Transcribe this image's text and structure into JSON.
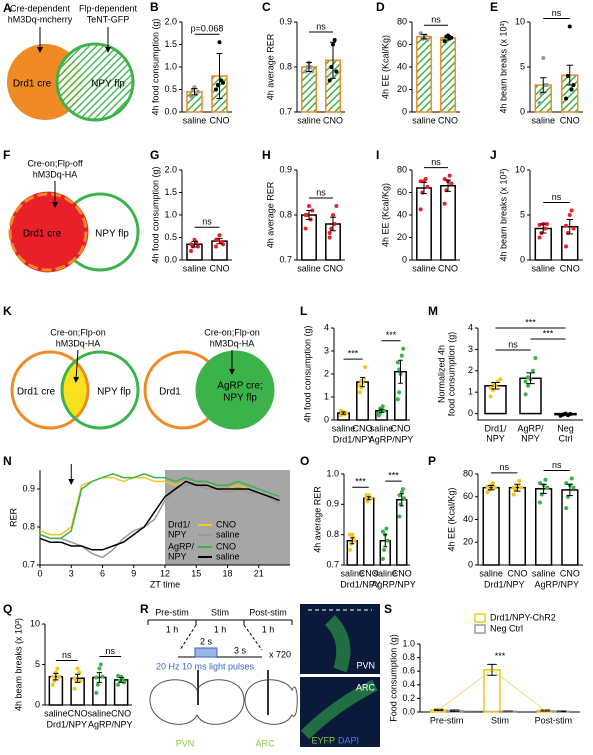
{
  "diagrams": {
    "A": {
      "panel": "A",
      "labels": [
        "Cre-dependent",
        "hM3Dq-mcherry",
        "Flp-dependent",
        "TeNT-GFP",
        "Drd1 cre",
        "NPY flp"
      ]
    },
    "F": {
      "panel": "F",
      "labels": [
        "Cre-on;Flp-off",
        "hM3Dq-HA",
        "Drd1 cre",
        "NPY flp"
      ]
    },
    "K": {
      "panel": "K",
      "labels": [
        "Cre-on;Flp-on",
        "hM3Dq-HA",
        "Drd1 cre",
        "NPY flp",
        "Cre-on;Flp-on",
        "hM3Dq-HA",
        "Drd1",
        "AgRP cre;",
        "NPY flp"
      ]
    },
    "R": {
      "panel": "R",
      "labels": [
        "Pre-stim",
        "Stim",
        "Post-stim",
        "1 h",
        "1 h",
        "1 h",
        "2 s",
        "3 s",
        "x 720",
        "20 Hz 10 ms light pulses",
        "PVN",
        "ARC",
        "PVN",
        "ARC",
        "EYFP",
        "DAPI"
      ]
    }
  },
  "chart_data": [
    {
      "type": "bar",
      "panel": "B",
      "ylabel": "4h food consumption (g)",
      "categories": [
        "saline",
        "CNO"
      ],
      "values": [
        0.45,
        0.8
      ],
      "errors": [
        0.07,
        0.5
      ],
      "points": [
        [
          0.35,
          0.5,
          0.55,
          0.4,
          0.45
        ],
        [
          0.5,
          0.6,
          1.55,
          0.7,
          0.65
        ]
      ],
      "ylim": [
        0,
        2
      ],
      "yticks": [
        {
          "value": 0,
          "label": "0.0"
        },
        0.5,
        {
          "value": 1,
          "label": "1.0"
        },
        1.5,
        {
          "value": 2,
          "label": "2.0"
        }
      ],
      "bar_fill": "hatch",
      "bar_stroke": "#f08a24",
      "point_colors": [
        "#999999",
        "#000000"
      ],
      "comparisons": [
        {
          "label": "p=0.068",
          "pair": [
            0,
            1
          ]
        }
      ]
    },
    {
      "type": "bar",
      "panel": "C",
      "ylabel": "4h average RER",
      "categories": [
        "saline",
        "CNO"
      ],
      "values": [
        0.8,
        0.815
      ],
      "errors": [
        0.01,
        0.04
      ],
      "points": [
        [
          0.79,
          0.8,
          0.81,
          0.8,
          0.79
        ],
        [
          0.77,
          0.8,
          0.85,
          0.86,
          0.79
        ]
      ],
      "ylim": [
        0.7,
        0.9
      ],
      "yticks": [
        0.7,
        0.8,
        0.9
      ],
      "bar_fill": "hatch",
      "bar_stroke": "#f08a24",
      "point_colors": [
        "#999999",
        "#000000"
      ],
      "comparisons": [
        {
          "label": "ns",
          "pair": [
            0,
            1
          ]
        }
      ]
    },
    {
      "type": "bar",
      "panel": "D",
      "ylabel": "4h EE (Kcal/Kg)",
      "categories": [
        "saline",
        "CNO"
      ],
      "values": [
        67,
        66
      ],
      "errors": [
        2,
        2
      ],
      "points": [
        [
          70,
          65,
          66,
          68,
          64
        ],
        [
          63,
          67,
          68,
          66,
          66
        ]
      ],
      "ylim": [
        0,
        80
      ],
      "yticks": [
        0,
        20,
        40,
        60,
        80
      ],
      "bar_fill": "hatch",
      "bar_stroke": "#f08a24",
      "point_colors": [
        "#999999",
        "#000000"
      ],
      "comparisons": [
        {
          "label": "ns",
          "pair": [
            0,
            1
          ]
        }
      ]
    },
    {
      "type": "bar",
      "panel": "E",
      "ylabel": "4h beam breaks (x 10³)",
      "categories": [
        "saline",
        "CNO"
      ],
      "values": [
        3,
        4.1
      ],
      "errors": [
        0.8,
        1.1
      ],
      "points": [
        [
          1,
          2,
          6,
          3,
          3
        ],
        [
          1.5,
          4,
          9.5,
          2.5,
          3
        ]
      ],
      "ylim": [
        0,
        10
      ],
      "yticks": [
        0,
        5,
        10
      ],
      "bar_fill": "hatch",
      "bar_stroke": "#f08a24",
      "point_colors": [
        "#999999",
        "#000000"
      ],
      "comparisons": [
        {
          "label": "ns",
          "pair": [
            0,
            1
          ]
        }
      ]
    },
    {
      "type": "bar",
      "panel": "G",
      "ylabel": "4h food consumption (g)",
      "categories": [
        "saline",
        "CNO"
      ],
      "values": [
        0.35,
        0.42
      ],
      "errors": [
        0.06,
        0.06
      ],
      "points": [
        [
          0.2,
          0.3,
          0.45,
          0.4,
          0.3,
          0.35
        ],
        [
          0.3,
          0.45,
          0.55,
          0.4,
          0.35,
          0.45
        ]
      ],
      "ylim": [
        0,
        2
      ],
      "yticks": [
        {
          "value": 0,
          "label": "0.0"
        },
        0.5,
        {
          "value": 1,
          "label": "1.0"
        },
        1.5,
        {
          "value": 2,
          "label": "2.0"
        }
      ],
      "bar_fill": "#ffffff",
      "bar_stroke": "#000000",
      "point_colors": [
        "#e8202a",
        "#e8202a"
      ],
      "comparisons": [
        {
          "label": "ns",
          "pair": [
            0,
            1
          ]
        }
      ]
    },
    {
      "type": "bar",
      "panel": "H",
      "ylabel": "4h average RER",
      "categories": [
        "saline",
        "CNO"
      ],
      "values": [
        0.8,
        0.78
      ],
      "errors": [
        0.01,
        0.015
      ],
      "points": [
        [
          0.77,
          0.8,
          0.82,
          0.79,
          0.81,
          0.8
        ],
        [
          0.75,
          0.77,
          0.8,
          0.78,
          0.82,
          0.76
        ]
      ],
      "ylim": [
        0.7,
        0.9
      ],
      "yticks": [
        0.7,
        0.8,
        0.9
      ],
      "bar_fill": "#ffffff",
      "bar_stroke": "#000000",
      "point_colors": [
        "#e8202a",
        "#e8202a"
      ],
      "comparisons": [
        {
          "label": "ns",
          "pair": [
            0,
            1
          ]
        }
      ]
    },
    {
      "type": "bar",
      "panel": "I",
      "ylabel": "4h EE (Kcal/Kg)",
      "categories": [
        "saline",
        "CNO"
      ],
      "values": [
        64,
        66
      ],
      "errors": [
        5,
        5
      ],
      "points": [
        [
          45,
          60,
          70,
          72,
          65,
          70
        ],
        [
          50,
          62,
          70,
          75,
          68,
          72
        ]
      ],
      "ylim": [
        0,
        80
      ],
      "yticks": [
        0,
        20,
        40,
        60,
        80
      ],
      "bar_fill": "#ffffff",
      "bar_stroke": "#000000",
      "point_colors": [
        "#e8202a",
        "#e8202a"
      ],
      "comparisons": [
        {
          "label": "ns",
          "pair": [
            0,
            1
          ]
        }
      ]
    },
    {
      "type": "bar",
      "panel": "J",
      "ylabel": "4h beam breaks (x 10³)",
      "categories": [
        "saline",
        "CNO"
      ],
      "values": [
        3.5,
        3.7
      ],
      "errors": [
        0.5,
        0.8
      ],
      "points": [
        [
          2.5,
          3,
          4,
          3.5,
          4,
          3.9
        ],
        [
          1.5,
          3,
          5,
          5.5,
          3.5,
          3.8
        ]
      ],
      "ylim": [
        0,
        10
      ],
      "yticks": [
        0,
        5,
        10
      ],
      "bar_fill": "#ffffff",
      "bar_stroke": "#000000",
      "point_colors": [
        "#e8202a",
        "#e8202a"
      ],
      "comparisons": [
        {
          "label": "ns",
          "pair": [
            0,
            1
          ]
        }
      ]
    },
    {
      "type": "bar",
      "panel": "L",
      "ylabel": "4h food consumption (g)",
      "categories": [
        "saline",
        "CNO",
        "saline",
        "CNO"
      ],
      "groups": [
        "Drd1/NPY",
        "AgRP/NPY"
      ],
      "values": [
        0.3,
        1.65,
        0.4,
        2.1
      ],
      "errors": [
        0.05,
        0.2,
        0.07,
        0.5
      ],
      "points": [
        [
          0.2,
          0.3,
          0.35,
          0.25,
          0.3,
          0.4,
          0.3
        ],
        [
          1.2,
          1.4,
          1.6,
          1.8,
          2.3,
          1.5,
          1.7
        ],
        [
          0.2,
          0.3,
          0.5,
          0.6,
          0.4,
          0.3,
          0.5
        ],
        [
          0.9,
          1.2,
          2.0,
          2.8,
          3.1,
          2.5,
          2.2
        ]
      ],
      "ylim": [
        0,
        4
      ],
      "yticks": [
        0,
        1,
        2,
        3,
        4
      ],
      "bar_fill": "#ffffff",
      "bar_stroke": "#000000",
      "point_colors": [
        "#f2c71e",
        "#f2c71e",
        "#3bb34a",
        "#3bb34a"
      ],
      "comparisons": [
        {
          "label": "***",
          "pair": [
            0,
            1
          ]
        },
        {
          "label": "***",
          "pair": [
            2,
            3
          ]
        }
      ]
    },
    {
      "type": "bar",
      "panel": "M",
      "ylabel": [
        "Normalized 4h",
        "food consumption (g)"
      ],
      "categories": [
        [
          "Drd1/",
          "NPY"
        ],
        [
          "AgRP/",
          "NPY"
        ],
        [
          "Neg",
          "Ctrl"
        ]
      ],
      "values": [
        1.3,
        1.65,
        -0.05
      ],
      "errors": [
        0.15,
        0.25,
        0.03
      ],
      "points": [
        [
          0.8,
          1.1,
          1.3,
          1.5,
          1.6,
          1.2,
          1.4
        ],
        [
          0.9,
          1.3,
          1.6,
          2.0,
          2.6,
          1.5,
          1.7
        ],
        [
          -0.1,
          -0.05,
          0,
          -0.08,
          -0.02
        ]
      ],
      "ylim": [
        -0.3,
        4
      ],
      "yticks": [
        0,
        1,
        2,
        3,
        4
      ],
      "bar_fill": "#ffffff",
      "bar_stroke": "#000000",
      "point_colors": [
        "#f2c71e",
        "#3bb34a",
        "#000000"
      ],
      "comparisons": [
        {
          "label": "ns",
          "pair": [
            0,
            1
          ]
        },
        {
          "label": "***",
          "pair": [
            1,
            2
          ]
        },
        {
          "label": "***",
          "pair": [
            0,
            2
          ]
        }
      ]
    },
    {
      "type": "line",
      "panel": "N",
      "ylabel": "RER",
      "xlabel": "ZT time",
      "x": [
        0,
        1,
        2,
        3,
        4,
        5,
        6,
        7,
        8,
        9,
        10,
        11,
        12,
        13,
        14,
        15,
        16,
        17,
        18,
        19,
        20,
        21,
        22,
        23
      ],
      "xlim": [
        0,
        24
      ],
      "xticks": [
        0,
        3,
        6,
        9,
        12,
        15,
        18,
        21
      ],
      "ylim": [
        0.7,
        0.95
      ],
      "yticks": [
        0.7,
        0.8,
        0.9
      ],
      "shaded_range": [
        12,
        24
      ],
      "arrow_x": 3,
      "legend_groups": [
        [
          "Drd1/",
          "NPY"
        ],
        [
          "AgRP/",
          "NPY"
        ]
      ],
      "series": [
        {
          "name": "CNO",
          "color": "#f2c71e",
          "values": [
            0.79,
            0.78,
            0.78,
            0.8,
            0.91,
            0.92,
            0.93,
            0.93,
            0.92,
            0.93,
            0.93,
            0.92,
            0.92,
            0.91,
            0.92,
            0.91,
            0.91,
            0.9,
            0.9,
            0.91,
            0.9,
            0.89,
            0.88,
            0.87
          ]
        },
        {
          "name": "saline",
          "color": "#9a9a9a",
          "values": [
            0.78,
            0.77,
            0.77,
            0.76,
            0.75,
            0.73,
            0.72,
            0.74,
            0.77,
            0.79,
            0.8,
            0.82,
            0.87,
            0.9,
            0.91,
            0.91,
            0.9,
            0.9,
            0.89,
            0.9,
            0.89,
            0.89,
            0.88,
            0.86
          ]
        },
        {
          "name": "CNO",
          "color": "#3bb34a",
          "values": [
            0.78,
            0.77,
            0.77,
            0.79,
            0.9,
            0.92,
            0.93,
            0.94,
            0.93,
            0.93,
            0.94,
            0.93,
            0.93,
            0.92,
            0.93,
            0.92,
            0.92,
            0.91,
            0.91,
            0.92,
            0.91,
            0.9,
            0.89,
            0.88
          ]
        },
        {
          "name": "saline",
          "color": "#000000",
          "values": [
            0.77,
            0.76,
            0.76,
            0.75,
            0.75,
            0.74,
            0.74,
            0.75,
            0.76,
            0.78,
            0.8,
            0.84,
            0.88,
            0.9,
            0.92,
            0.91,
            0.91,
            0.9,
            0.9,
            0.9,
            0.9,
            0.89,
            0.88,
            0.87
          ]
        }
      ]
    },
    {
      "type": "bar",
      "panel": "O",
      "ylabel": "4h average RER",
      "categories": [
        "saline",
        "CNO",
        "saline",
        "CNO"
      ],
      "groups": [
        "Drd1/NPY",
        "AgRP/NPY"
      ],
      "values": [
        0.78,
        0.92,
        0.78,
        0.915
      ],
      "errors": [
        0.01,
        0.005,
        0.02,
        0.02
      ],
      "points": [
        [
          0.75,
          0.77,
          0.8,
          0.79,
          0.78,
          0.8
        ],
        [
          0.92,
          0.91,
          0.93,
          0.92,
          0.92,
          0.93
        ],
        [
          0.72,
          0.75,
          0.8,
          0.82,
          0.78,
          0.81
        ],
        [
          0.86,
          0.9,
          0.94,
          0.95,
          0.92,
          0.93
        ]
      ],
      "ylim": [
        0.7,
        1
      ],
      "yticks": [
        0.7,
        0.8,
        0.9,
        {
          "value": 1,
          "label": "1.0"
        }
      ],
      "bar_fill": "#ffffff",
      "bar_stroke": "#000000",
      "point_colors": [
        "#f2c71e",
        "#f2c71e",
        "#3bb34a",
        "#3bb34a"
      ],
      "comparisons": [
        {
          "label": "***",
          "pair": [
            0,
            1
          ]
        },
        {
          "label": "***",
          "pair": [
            2,
            3
          ]
        }
      ]
    },
    {
      "type": "bar",
      "panel": "P",
      "ylabel": "4h EE (Kcal/Kg)",
      "categories": [
        "saline",
        "CNO",
        "saline",
        "CNO"
      ],
      "groups": [
        "Drd1/NPY",
        "AgRP/NPY"
      ],
      "values": [
        68,
        68,
        67,
        66
      ],
      "errors": [
        2,
        3,
        4,
        5
      ],
      "points": [
        [
          64,
          66,
          70,
          72,
          68,
          69
        ],
        [
          62,
          66,
          70,
          74,
          68,
          68
        ],
        [
          55,
          62,
          70,
          75,
          68,
          72
        ],
        [
          50,
          60,
          70,
          76,
          68,
          72
        ]
      ],
      "ylim": [
        0,
        80
      ],
      "yticks": [
        0,
        20,
        40,
        60,
        80
      ],
      "bar_fill": "#ffffff",
      "bar_stroke": "#000000",
      "point_colors": [
        "#f2c71e",
        "#f2c71e",
        "#3bb34a",
        "#3bb34a"
      ],
      "comparisons": [
        {
          "label": "ns",
          "pair": [
            0,
            1
          ]
        },
        {
          "label": "ns",
          "pair": [
            2,
            3
          ]
        }
      ]
    },
    {
      "type": "bar",
      "panel": "Q",
      "ylabel": "4h beam breaks (x 10³)",
      "categories": [
        "saline",
        "CNO",
        "saline",
        "CNO"
      ],
      "groups": [
        "Drd1/NPY",
        "AgRP/NPY"
      ],
      "values": [
        3.5,
        3.3,
        3.4,
        3.1
      ],
      "errors": [
        0.4,
        0.5,
        0.6,
        0.3
      ],
      "points": [
        [
          2.5,
          3,
          4,
          4.5,
          3.5,
          3.5
        ],
        [
          2,
          3,
          4.5,
          4,
          3,
          3.3
        ],
        [
          1.5,
          2.5,
          4.5,
          5,
          3.5,
          3.4
        ],
        [
          2.5,
          3,
          3.5,
          3.2,
          2.8,
          3.6
        ]
      ],
      "ylim": [
        0,
        10
      ],
      "yticks": [
        0,
        5,
        10
      ],
      "bar_fill": "#ffffff",
      "bar_stroke": "#000000",
      "point_colors": [
        "#f2c71e",
        "#f2c71e",
        "#3bb34a",
        "#3bb34a"
      ],
      "comparisons": [
        {
          "label": "ns",
          "pair": [
            0,
            1
          ]
        },
        {
          "label": "ns",
          "pair": [
            2,
            3
          ]
        }
      ]
    },
    {
      "type": "grouped",
      "panel": "S",
      "ylabel": "Food consumption (g)",
      "categories": [
        "Pre-stim",
        "Stim",
        "Post-stim"
      ],
      "ylim": [
        0,
        1
      ],
      "yticks": [
        {
          "value": 0,
          "label": "0.0"
        },
        0.2,
        0.4,
        0.6,
        0.8,
        {
          "value": 1,
          "label": "1.0"
        }
      ],
      "series": [
        {
          "name": "Drd1/NPY-ChR2",
          "color": "#f2c71e",
          "values": [
            0.03,
            0.62,
            0.02
          ],
          "errors": [
            0.01,
            0.08,
            0.01
          ]
        },
        {
          "name": "Neg Ctrl",
          "color": "#9a9a9a",
          "values": [
            0.02,
            0.01,
            0.01
          ],
          "errors": [
            0.01,
            0.005,
            0.005
          ]
        }
      ],
      "comparisons": [
        {
          "label": "***",
          "category": 1
        }
      ]
    }
  ]
}
